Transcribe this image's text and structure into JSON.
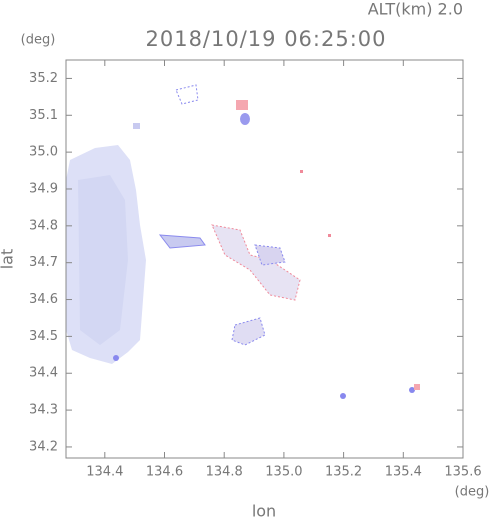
{
  "chart_data": {
    "type": "map",
    "title": "2018/10/19 06:25:00",
    "subtitle": "ALT(km) 2.0",
    "xlabel": "lon",
    "ylabel": "lat",
    "xunit": "(deg)",
    "yunit": "(deg)",
    "xlim": [
      134.27,
      135.6
    ],
    "ylim": [
      34.17,
      35.25
    ],
    "xticks": [
      134.4,
      134.6,
      134.8,
      {
        "value": 135.0,
        "label": "135.0"
      },
      135.2,
      135.4,
      135.6
    ],
    "yticks": [
      34.2,
      34.3,
      34.4,
      34.5,
      34.6,
      34.7,
      34.8,
      34.9,
      {
        "value": 35.0,
        "label": "35.0"
      },
      35.1,
      35.2
    ]
  }
}
